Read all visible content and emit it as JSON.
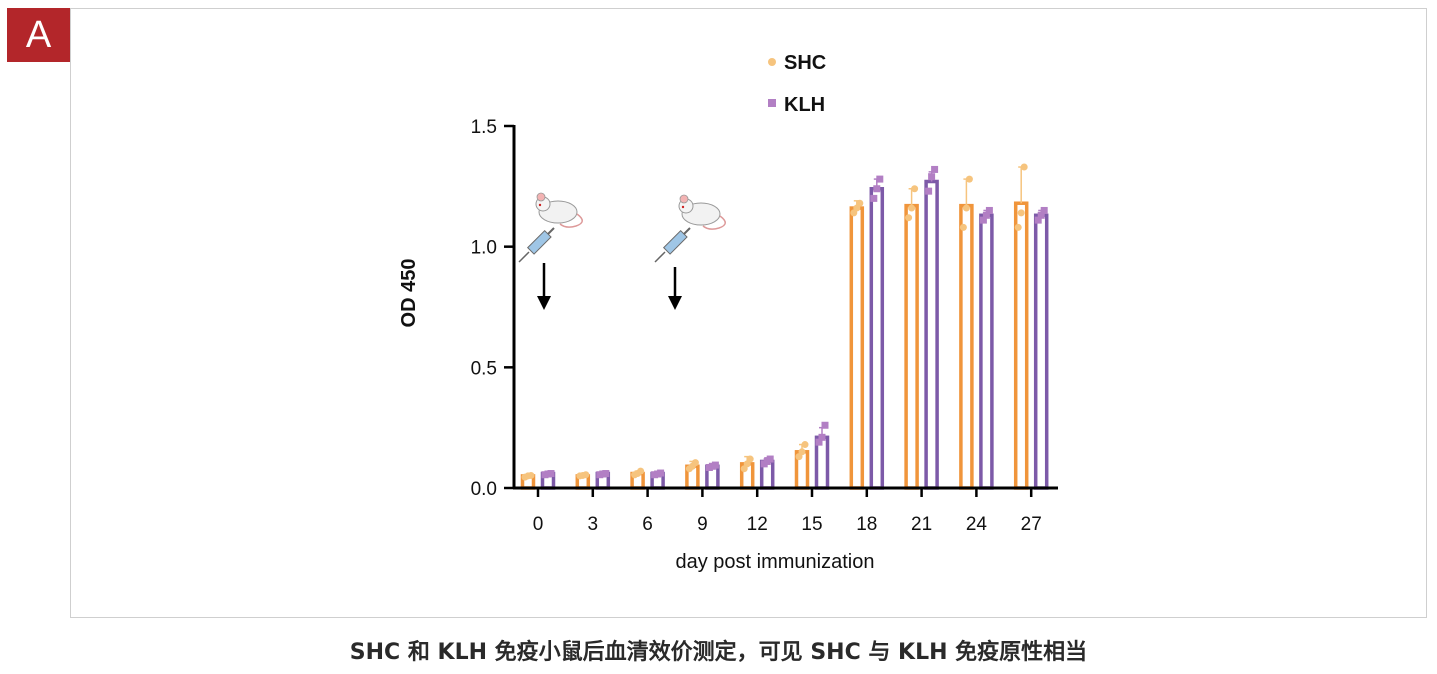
{
  "panel_label": "A",
  "caption": "SHC 和 KLH 免疫小鼠后血清效价测定，可见 SHC 与 KLH 免疫原性相当",
  "colors": {
    "shc": "#f0953b",
    "klh": "#7d5aa8",
    "shc_point": "#f6c47e",
    "klh_point": "#b27fc4",
    "panel_bg": "#b3262a"
  },
  "chart_data": {
    "type": "bar",
    "xlabel": "day post immunization",
    "ylabel": "OD 450",
    "ylim": [
      0,
      1.5
    ],
    "yticks": [
      "0.0",
      "0.5",
      "1.0",
      "1.5"
    ],
    "categories": [
      "0",
      "3",
      "6",
      "9",
      "12",
      "15",
      "18",
      "21",
      "24",
      "27"
    ],
    "series": [
      {
        "name": "SHC",
        "values": [
          0.05,
          0.05,
          0.06,
          0.09,
          0.1,
          0.15,
          1.16,
          1.17,
          1.17,
          1.18
        ],
        "error": [
          0.005,
          0.005,
          0.01,
          0.02,
          0.03,
          0.03,
          0.03,
          0.07,
          0.11,
          0.15
        ],
        "points": [
          [
            0.045,
            0.05,
            0.052
          ],
          [
            0.05,
            0.052,
            0.055
          ],
          [
            0.055,
            0.06,
            0.07
          ],
          [
            0.08,
            0.09,
            0.105
          ],
          [
            0.08,
            0.1,
            0.12
          ],
          [
            0.13,
            0.15,
            0.18
          ],
          [
            1.14,
            1.16,
            1.18
          ],
          [
            1.12,
            1.16,
            1.24
          ],
          [
            1.08,
            1.16,
            1.28
          ],
          [
            1.08,
            1.14,
            1.33
          ]
        ]
      },
      {
        "name": "KLH",
        "values": [
          0.06,
          0.06,
          0.06,
          0.09,
          0.11,
          0.21,
          1.24,
          1.27,
          1.13,
          1.13
        ],
        "error": [
          0.005,
          0.005,
          0.005,
          0.01,
          0.015,
          0.04,
          0.04,
          0.04,
          0.02,
          0.02
        ],
        "points": [
          [
            0.055,
            0.058,
            0.06
          ],
          [
            0.055,
            0.058,
            0.06
          ],
          [
            0.055,
            0.058,
            0.062
          ],
          [
            0.085,
            0.09,
            0.095
          ],
          [
            0.1,
            0.11,
            0.12
          ],
          [
            0.19,
            0.21,
            0.26
          ],
          [
            1.2,
            1.24,
            1.28
          ],
          [
            1.23,
            1.29,
            1.32
          ],
          [
            1.11,
            1.13,
            1.15
          ],
          [
            1.11,
            1.13,
            1.15
          ]
        ]
      }
    ],
    "legend": {
      "placement": "top-center",
      "entries": [
        "SHC",
        "KLH"
      ]
    },
    "annotations": [
      {
        "type": "immunization-arrow",
        "day": "0",
        "icons": [
          "mouse-icon",
          "syringe-icon"
        ]
      },
      {
        "type": "immunization-arrow",
        "day": "9",
        "icons": [
          "mouse-icon",
          "syringe-icon"
        ]
      }
    ],
    "grid": false
  }
}
